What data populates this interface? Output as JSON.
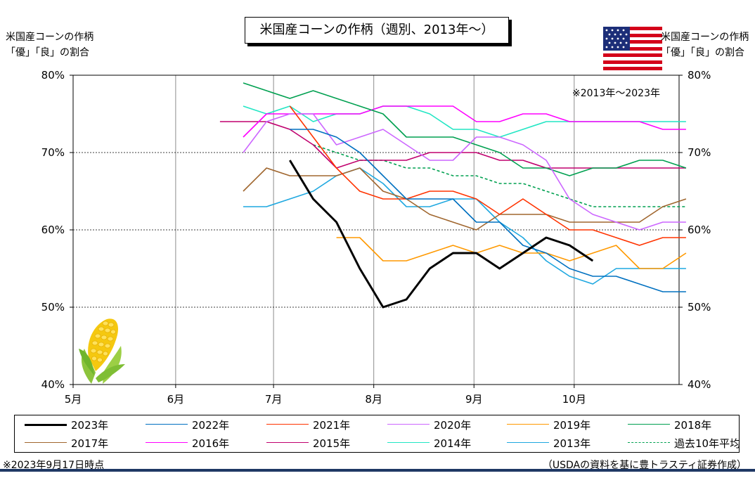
{
  "title": "米国産コーンの作柄（週別、2013年～）",
  "y_axis_title_left": [
    "米国産コーンの作柄",
    "「優」「良」の割合"
  ],
  "y_axis_title_right": [
    "米国産コーンの作柄",
    "「優」「良」の割合"
  ],
  "note_period": "※2013年～2023年",
  "footer_left": "※2023年9月17日時点",
  "footer_right": "（USDAの資料を基に豊トラスティ証券作成）",
  "icons": [
    "us-flag-icon",
    "corn-icon"
  ],
  "chart_data": {
    "type": "line",
    "x_ticks": [
      "5月",
      "6月",
      "7月",
      "8月",
      "9月",
      "10月"
    ],
    "y_ticks": [
      "40%",
      "50%",
      "60%",
      "70%",
      "80%"
    ],
    "ylim": [
      40,
      80
    ],
    "x_unit": "week",
    "xlim": [
      0,
      26
    ],
    "grid": "horizontal dashed at 50/60/70, solid vertical at month boundaries",
    "legend_position": "bottom",
    "series": [
      {
        "name": "2023年",
        "color": "#000000",
        "width": 3,
        "dash": "",
        "x": [
          9.3,
          10.3,
          11.3,
          12.3,
          13.3,
          14.3,
          15.3,
          16.3,
          17.3,
          18.3,
          19.3,
          20.3,
          21.3,
          22.3
        ],
        "values": [
          69,
          64,
          61,
          55,
          50,
          51,
          55,
          57,
          57,
          55,
          57,
          59,
          58,
          56
        ]
      },
      {
        "name": "2022年",
        "color": "#0070c0",
        "width": 1.6,
        "dash": "",
        "x": [
          9.3,
          10.3,
          11.3,
          12.3,
          13.3,
          14.3,
          15.3,
          16.3,
          17.3,
          18.3,
          19.3,
          20.3,
          21.3,
          22.3,
          23.3,
          24.3,
          25.3,
          26.3
        ],
        "values": [
          73,
          73,
          72,
          70,
          67,
          64,
          64,
          64,
          61,
          61,
          58,
          57,
          55,
          54,
          54,
          53,
          52,
          52
        ]
      },
      {
        "name": "2021年",
        "color": "#ff3300",
        "width": 1.6,
        "dash": "",
        "x": [
          9.3,
          10.3,
          11.3,
          12.3,
          13.3,
          14.3,
          15.3,
          16.3,
          17.3,
          18.3,
          19.3,
          20.3,
          21.3,
          22.3,
          23.3,
          24.3,
          25.3,
          26.3
        ],
        "values": [
          76,
          72,
          68,
          65,
          64,
          64,
          65,
          65,
          64,
          62,
          64,
          62,
          60,
          60,
          59,
          58,
          59,
          59
        ]
      },
      {
        "name": "2020年",
        "color": "#cc66ff",
        "width": 1.6,
        "dash": "",
        "x": [
          7.3,
          8.3,
          9.3,
          10.3,
          11.3,
          12.3,
          13.3,
          14.3,
          15.3,
          16.3,
          17.3,
          18.3,
          19.3,
          20.3,
          21.3,
          22.3,
          23.3,
          24.3,
          25.3,
          26.3
        ],
        "values": [
          70,
          74,
          75,
          75,
          71,
          72,
          73,
          71,
          69,
          69,
          72,
          72,
          71,
          69,
          64,
          62,
          61,
          60,
          61,
          61
        ]
      },
      {
        "name": "2019年",
        "color": "#ff9900",
        "width": 1.6,
        "dash": "",
        "x": [
          11.3,
          12.3,
          13.3,
          14.3,
          15.3,
          16.3,
          17.3,
          18.3,
          19.3,
          20.3,
          21.3,
          22.3,
          23.3,
          24.3,
          25.3,
          26.3
        ],
        "values": [
          59,
          59,
          56,
          56,
          57,
          58,
          57,
          58,
          57,
          57,
          56,
          57,
          58,
          55,
          55,
          57
        ]
      },
      {
        "name": "2018年",
        "color": "#00a050",
        "width": 1.6,
        "dash": "",
        "x": [
          7.3,
          8.3,
          9.3,
          10.3,
          11.3,
          12.3,
          13.3,
          14.3,
          15.3,
          16.3,
          17.3,
          18.3,
          19.3,
          20.3,
          21.3,
          22.3,
          23.3,
          24.3,
          25.3,
          26.3
        ],
        "values": [
          79,
          78,
          77,
          78,
          77,
          76,
          75,
          72,
          72,
          72,
          71,
          70,
          68,
          68,
          67,
          68,
          68,
          69,
          69,
          68
        ]
      },
      {
        "name": "2017年",
        "color": "#a0662e",
        "width": 1.6,
        "dash": "",
        "x": [
          7.3,
          8.3,
          9.3,
          10.3,
          11.3,
          12.3,
          13.3,
          14.3,
          15.3,
          16.3,
          17.3,
          18.3,
          19.3,
          20.3,
          21.3,
          22.3,
          23.3,
          24.3,
          25.3,
          26.3
        ],
        "values": [
          65,
          68,
          67,
          67,
          67,
          68,
          65,
          64,
          62,
          61,
          60,
          62,
          62,
          62,
          61,
          61,
          61,
          61,
          63,
          64
        ]
      },
      {
        "name": "2016年",
        "color": "#ff00ff",
        "width": 1.6,
        "dash": "",
        "x": [
          7.3,
          8.3,
          9.3,
          10.3,
          11.3,
          12.3,
          13.3,
          14.3,
          15.3,
          16.3,
          17.3,
          18.3,
          19.3,
          20.3,
          21.3,
          22.3,
          23.3,
          24.3,
          25.3,
          26.3
        ],
        "values": [
          72,
          75,
          75,
          75,
          75,
          75,
          76,
          76,
          76,
          76,
          74,
          74,
          75,
          75,
          74,
          74,
          74,
          74,
          73,
          73
        ]
      },
      {
        "name": "2015年",
        "color": "#c0006e",
        "width": 1.6,
        "dash": "",
        "x": [
          6.3,
          7.3,
          8.3,
          9.3,
          10.3,
          11.3,
          12.3,
          13.3,
          14.3,
          15.3,
          16.3,
          17.3,
          18.3,
          19.3,
          20.3,
          21.3,
          22.3,
          23.3,
          24.3,
          25.3,
          26.3
        ],
        "values": [
          74,
          74,
          74,
          73,
          71,
          68,
          69,
          69,
          69,
          70,
          70,
          70,
          69,
          69,
          68,
          68,
          68,
          68,
          68,
          68,
          68
        ]
      },
      {
        "name": "2014年",
        "color": "#22e6c4",
        "width": 1.6,
        "dash": "",
        "x": [
          7.3,
          8.3,
          9.3,
          10.3,
          11.3,
          12.3,
          13.3,
          14.3,
          15.3,
          16.3,
          17.3,
          18.3,
          19.3,
          20.3,
          21.3,
          22.3,
          23.3,
          24.3,
          25.3,
          26.3
        ],
        "values": [
          76,
          75,
          76,
          74,
          75,
          75,
          76,
          76,
          75,
          73,
          73,
          72,
          73,
          74,
          74,
          74,
          74,
          74,
          74,
          74
        ]
      },
      {
        "name": "2013年",
        "color": "#1fa8e0",
        "width": 1.6,
        "dash": "",
        "x": [
          7.3,
          8.3,
          9.3,
          10.3,
          11.3,
          12.3,
          13.3,
          14.3,
          15.3,
          16.3,
          17.3,
          18.3,
          19.3,
          20.3,
          21.3,
          22.3,
          23.3,
          24.3,
          25.3,
          26.3
        ],
        "values": [
          63,
          63,
          64,
          65,
          67,
          68,
          66,
          63,
          63,
          64,
          64,
          61,
          59,
          56,
          54,
          53,
          55,
          55,
          55,
          55
        ]
      },
      {
        "name": "過去10年平均",
        "color": "#00a050",
        "width": 1.6,
        "dash": "4,3",
        "x": [
          10.3,
          11.3,
          12.3,
          13.3,
          14.3,
          15.3,
          16.3,
          17.3,
          18.3,
          19.3,
          20.3,
          21.3,
          22.3,
          23.3,
          24.3,
          25.3,
          26.3
        ],
        "values": [
          71,
          70,
          69,
          69,
          68,
          68,
          67,
          67,
          66,
          66,
          65,
          64,
          63,
          63,
          63,
          63,
          63
        ]
      }
    ]
  }
}
